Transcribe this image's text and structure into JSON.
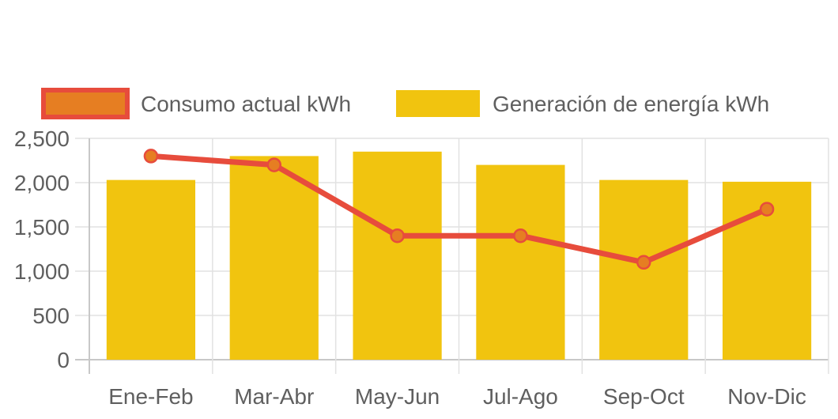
{
  "chart_data": {
    "type": "bar",
    "categories": [
      "Ene-Feb",
      "Mar-Abr",
      "May-Jun",
      "Jul-Ago",
      "Sep-Oct",
      "Nov-Dic"
    ],
    "series": [
      {
        "name": "Generación de energía kWh",
        "type": "bar",
        "values": [
          2030,
          2300,
          2350,
          2200,
          2030,
          2010
        ],
        "color": "#f1c40f"
      },
      {
        "name": "Consumo actual kWh",
        "type": "line",
        "values": [
          2300,
          2200,
          1400,
          1400,
          1100,
          1700
        ],
        "color": "#e74c3c",
        "point_color": "#e67e22"
      }
    ],
    "y_ticks": [
      "0",
      "500",
      "1,000",
      "1,500",
      "2,000",
      "2,500"
    ],
    "ylim": [
      0,
      2500
    ],
    "grid": true,
    "legend_position": "top"
  }
}
